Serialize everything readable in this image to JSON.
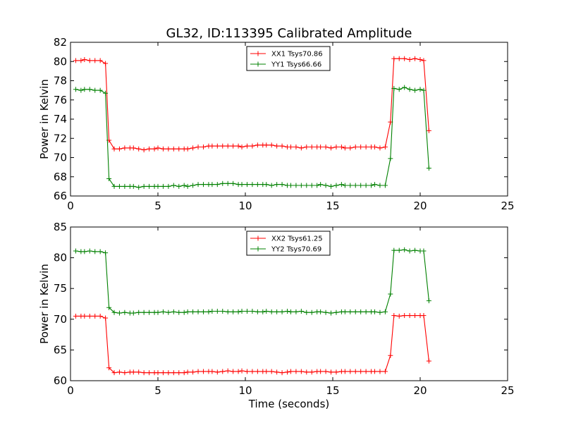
{
  "figure": {
    "title": "GL32, ID:113395 Calibrated Amplitude",
    "xlabel": "Time (seconds)"
  },
  "chart_data": [
    {
      "type": "line",
      "ylabel": "Power in Kelvin",
      "xlim": [
        0,
        25
      ],
      "ylim": [
        66,
        82
      ],
      "xticks": [
        0,
        5,
        10,
        15,
        20,
        25
      ],
      "yticks": [
        66,
        68,
        70,
        72,
        74,
        76,
        78,
        80,
        82
      ],
      "legend": "top-center",
      "series": [
        {
          "name": "XX1 Tsys70.86",
          "color": "#ff0000",
          "x": [
            0.3,
            0.6,
            0.8,
            1.1,
            1.4,
            1.7,
            2.0,
            2.2,
            2.5,
            2.8,
            3.1,
            3.4,
            3.6,
            3.9,
            4.2,
            4.5,
            4.8,
            5.0,
            5.3,
            5.6,
            5.9,
            6.2,
            6.5,
            6.7,
            7.0,
            7.3,
            7.6,
            7.9,
            8.1,
            8.4,
            8.7,
            9.0,
            9.3,
            9.6,
            9.8,
            10.1,
            10.4,
            10.7,
            11.0,
            11.2,
            11.5,
            11.8,
            12.1,
            12.4,
            12.6,
            12.9,
            13.2,
            13.5,
            13.8,
            14.1,
            14.3,
            14.6,
            14.9,
            15.2,
            15.5,
            15.7,
            16.0,
            16.3,
            16.6,
            16.9,
            17.2,
            17.4,
            17.7,
            18.0,
            18.3,
            18.5,
            18.8,
            19.1,
            19.4,
            19.7,
            20.0,
            20.2,
            20.5
          ],
          "y": [
            80.1,
            80.1,
            80.2,
            80.1,
            80.1,
            80.1,
            79.8,
            71.8,
            70.9,
            70.9,
            71.0,
            71.0,
            71.0,
            70.9,
            70.8,
            70.9,
            70.9,
            71.0,
            70.9,
            70.9,
            70.9,
            70.9,
            70.9,
            70.9,
            71.0,
            71.1,
            71.1,
            71.2,
            71.2,
            71.2,
            71.2,
            71.2,
            71.2,
            71.2,
            71.1,
            71.2,
            71.2,
            71.3,
            71.3,
            71.3,
            71.3,
            71.2,
            71.2,
            71.1,
            71.1,
            71.1,
            71.0,
            71.1,
            71.1,
            71.1,
            71.1,
            71.1,
            71.0,
            71.1,
            71.1,
            71.0,
            71.0,
            71.1,
            71.1,
            71.1,
            71.1,
            71.1,
            71.0,
            71.1,
            73.7,
            80.3,
            80.3,
            80.3,
            80.2,
            80.3,
            80.2,
            80.1,
            72.8
          ]
        },
        {
          "name": "YY1 Tsys66.66",
          "color": "#008000",
          "x": [
            0.3,
            0.6,
            0.8,
            1.1,
            1.4,
            1.7,
            2.0,
            2.2,
            2.5,
            2.8,
            3.1,
            3.4,
            3.6,
            3.9,
            4.2,
            4.5,
            4.8,
            5.0,
            5.3,
            5.6,
            5.9,
            6.2,
            6.5,
            6.7,
            7.0,
            7.3,
            7.6,
            7.9,
            8.1,
            8.4,
            8.7,
            9.0,
            9.3,
            9.6,
            9.8,
            10.1,
            10.4,
            10.7,
            11.0,
            11.2,
            11.5,
            11.8,
            12.1,
            12.4,
            12.6,
            12.9,
            13.2,
            13.5,
            13.8,
            14.1,
            14.3,
            14.6,
            14.9,
            15.2,
            15.5,
            15.7,
            16.0,
            16.3,
            16.6,
            16.9,
            17.2,
            17.4,
            17.7,
            18.0,
            18.3,
            18.5,
            18.8,
            19.1,
            19.4,
            19.7,
            20.0,
            20.2,
            20.5
          ],
          "y": [
            77.1,
            77.0,
            77.1,
            77.1,
            77.0,
            77.0,
            76.7,
            67.8,
            67.0,
            67.0,
            67.0,
            67.0,
            67.0,
            66.9,
            67.0,
            67.0,
            67.0,
            67.0,
            67.0,
            67.0,
            67.1,
            67.0,
            67.1,
            67.0,
            67.1,
            67.2,
            67.2,
            67.2,
            67.2,
            67.2,
            67.3,
            67.3,
            67.3,
            67.2,
            67.2,
            67.2,
            67.2,
            67.2,
            67.2,
            67.2,
            67.1,
            67.2,
            67.2,
            67.1,
            67.1,
            67.1,
            67.1,
            67.1,
            67.1,
            67.1,
            67.2,
            67.1,
            67.0,
            67.1,
            67.2,
            67.1,
            67.1,
            67.1,
            67.1,
            67.1,
            67.1,
            67.2,
            67.1,
            67.1,
            69.9,
            77.2,
            77.1,
            77.3,
            77.1,
            77.0,
            77.1,
            77.0,
            68.9
          ]
        }
      ]
    },
    {
      "type": "line",
      "ylabel": "Power in Kelvin",
      "xlabel": "Time (seconds)",
      "xlim": [
        0,
        25
      ],
      "ylim": [
        60,
        85
      ],
      "xticks": [
        0,
        5,
        10,
        15,
        20,
        25
      ],
      "yticks": [
        60,
        65,
        70,
        75,
        80,
        85
      ],
      "legend": "top-center",
      "series": [
        {
          "name": "XX2 Tsys61.25",
          "color": "#ff0000",
          "x": [
            0.3,
            0.6,
            0.8,
            1.1,
            1.4,
            1.7,
            2.0,
            2.2,
            2.5,
            2.8,
            3.1,
            3.4,
            3.6,
            3.9,
            4.2,
            4.5,
            4.8,
            5.0,
            5.3,
            5.6,
            5.9,
            6.2,
            6.5,
            6.7,
            7.0,
            7.3,
            7.6,
            7.9,
            8.1,
            8.4,
            8.7,
            9.0,
            9.3,
            9.6,
            9.8,
            10.1,
            10.4,
            10.7,
            11.0,
            11.2,
            11.5,
            11.8,
            12.1,
            12.4,
            12.6,
            12.9,
            13.2,
            13.5,
            13.8,
            14.1,
            14.3,
            14.6,
            14.9,
            15.2,
            15.5,
            15.7,
            16.0,
            16.3,
            16.6,
            16.9,
            17.2,
            17.4,
            17.7,
            18.0,
            18.3,
            18.5,
            18.8,
            19.1,
            19.4,
            19.7,
            20.0,
            20.2,
            20.5
          ],
          "y": [
            70.5,
            70.5,
            70.5,
            70.5,
            70.5,
            70.5,
            70.2,
            62.1,
            61.3,
            61.4,
            61.3,
            61.4,
            61.4,
            61.4,
            61.3,
            61.3,
            61.3,
            61.3,
            61.3,
            61.3,
            61.3,
            61.3,
            61.3,
            61.4,
            61.4,
            61.5,
            61.5,
            61.5,
            61.5,
            61.4,
            61.5,
            61.6,
            61.5,
            61.5,
            61.6,
            61.5,
            61.5,
            61.5,
            61.5,
            61.5,
            61.5,
            61.4,
            61.3,
            61.4,
            61.5,
            61.5,
            61.5,
            61.4,
            61.4,
            61.5,
            61.5,
            61.5,
            61.4,
            61.4,
            61.5,
            61.5,
            61.5,
            61.5,
            61.5,
            61.5,
            61.5,
            61.5,
            61.5,
            61.5,
            64.1,
            70.6,
            70.5,
            70.6,
            70.6,
            70.6,
            70.6,
            70.6,
            63.2
          ]
        },
        {
          "name": "YY2 Tsys70.69",
          "color": "#008000",
          "x": [
            0.3,
            0.6,
            0.8,
            1.1,
            1.4,
            1.7,
            2.0,
            2.2,
            2.5,
            2.8,
            3.1,
            3.4,
            3.6,
            3.9,
            4.2,
            4.5,
            4.8,
            5.0,
            5.3,
            5.6,
            5.9,
            6.2,
            6.5,
            6.7,
            7.0,
            7.3,
            7.6,
            7.9,
            8.1,
            8.4,
            8.7,
            9.0,
            9.3,
            9.6,
            9.8,
            10.1,
            10.4,
            10.7,
            11.0,
            11.2,
            11.5,
            11.8,
            12.1,
            12.4,
            12.6,
            12.9,
            13.2,
            13.5,
            13.8,
            14.1,
            14.3,
            14.6,
            14.9,
            15.2,
            15.5,
            15.7,
            16.0,
            16.3,
            16.6,
            16.9,
            17.2,
            17.4,
            17.7,
            18.0,
            18.3,
            18.5,
            18.8,
            19.1,
            19.4,
            19.7,
            20.0,
            20.2,
            20.5
          ],
          "y": [
            81.1,
            81.0,
            81.0,
            81.1,
            81.0,
            81.0,
            80.8,
            71.9,
            71.1,
            71.0,
            71.1,
            71.0,
            71.0,
            71.1,
            71.1,
            71.1,
            71.1,
            71.1,
            71.2,
            71.1,
            71.2,
            71.1,
            71.1,
            71.2,
            71.2,
            71.2,
            71.2,
            71.2,
            71.3,
            71.3,
            71.3,
            71.2,
            71.2,
            71.2,
            71.3,
            71.3,
            71.3,
            71.2,
            71.2,
            71.3,
            71.2,
            71.2,
            71.2,
            71.3,
            71.2,
            71.2,
            71.3,
            71.1,
            71.1,
            71.2,
            71.2,
            71.1,
            71.0,
            71.1,
            71.2,
            71.2,
            71.2,
            71.2,
            71.2,
            71.2,
            71.2,
            71.2,
            71.1,
            71.2,
            74.1,
            81.2,
            81.2,
            81.3,
            81.1,
            81.2,
            81.1,
            81.1,
            73.0
          ]
        }
      ]
    }
  ]
}
